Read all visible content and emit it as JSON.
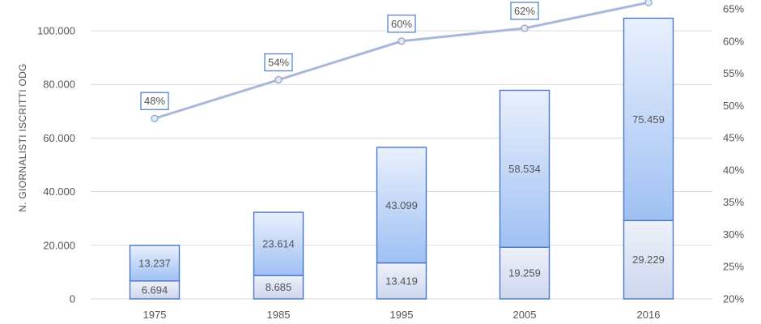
{
  "chart_data": {
    "type": "bar",
    "stacked": true,
    "categories": [
      "1975",
      "1985",
      "1995",
      "2005",
      "2016"
    ],
    "series": [
      {
        "values": [
          6694,
          8685,
          13419,
          19259,
          29229
        ],
        "labels": [
          "6.694",
          "8.685",
          "13.419",
          "19.259",
          "29.229"
        ]
      },
      {
        "values": [
          13237,
          23614,
          43099,
          58534,
          75459
        ],
        "labels": [
          "13.237",
          "23.614",
          "43.099",
          "58.534",
          "75.459"
        ]
      }
    ],
    "line_series": {
      "axis": "right",
      "values": [
        48,
        54,
        60,
        62,
        66
      ],
      "labels": [
        "48%",
        "54%",
        "60%",
        "62%",
        ""
      ]
    },
    "ylabel": "N. GIORNALISTI ISCRITTI ODG",
    "ylim": [
      0,
      100000
    ],
    "yticks": [
      "0",
      "20.000",
      "40.000",
      "60.000",
      "80.000",
      "100.000"
    ],
    "y2lim": [
      20,
      65
    ],
    "y2ticks": [
      "20%",
      "25%",
      "30%",
      "35%",
      "40%",
      "45%",
      "50%",
      "55%",
      "60%",
      "65%"
    ],
    "grid": true,
    "colors": {
      "bar_bottom": "#dde3f3",
      "bar_top": "#a9c7f4",
      "bar_border": "#4a78c8",
      "line": "#a8b8d8",
      "marker": "#dfe8f7",
      "grid": "#d9d9d9"
    }
  }
}
